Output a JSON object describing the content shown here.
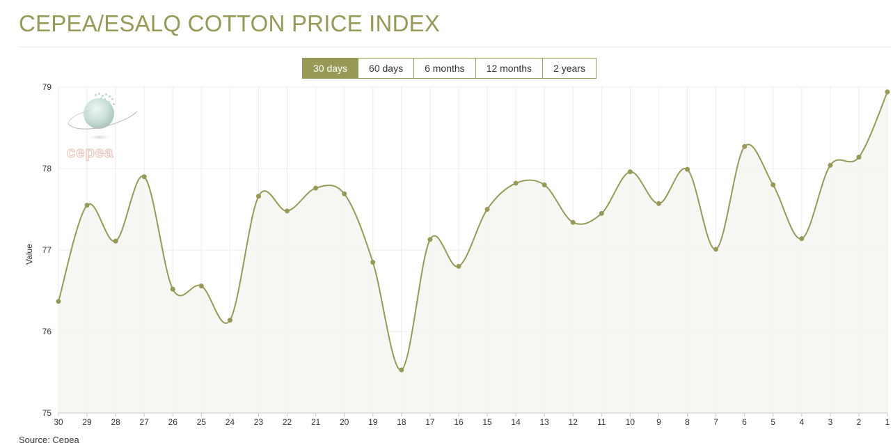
{
  "title": "CEPEA/ESALQ COTTON PRICE INDEX",
  "range_tabs": [
    {
      "label": "30 days",
      "active": true
    },
    {
      "label": "60 days",
      "active": false
    },
    {
      "label": "6 months",
      "active": false
    },
    {
      "label": "12 months",
      "active": false
    },
    {
      "label": "2 years",
      "active": false
    }
  ],
  "source": "Source: Cepea",
  "logo": {
    "text": "cepea"
  },
  "colors": {
    "accent": "#979a57",
    "area_fill": "#f5f5f0",
    "grid": "#ececec"
  },
  "chart_data": {
    "type": "area",
    "xlabel": "",
    "ylabel": "Value",
    "ylim": [
      75,
      79
    ],
    "yticks": [
      75,
      76,
      77,
      78,
      79
    ],
    "grid": true,
    "smooth": true,
    "categories": [
      "30",
      "29",
      "28",
      "27",
      "26",
      "25",
      "24",
      "23",
      "22",
      "21",
      "20",
      "19",
      "18",
      "17",
      "16",
      "15",
      "14",
      "13",
      "12",
      "11",
      "10",
      "9",
      "8",
      "7",
      "6",
      "5",
      "4",
      "3",
      "2",
      "1"
    ],
    "series": [
      {
        "values": [
          76.37,
          77.55,
          77.11,
          77.9,
          76.52,
          76.56,
          76.14,
          77.66,
          77.48,
          77.76,
          77.69,
          76.85,
          75.53,
          77.13,
          76.8,
          77.5,
          77.82,
          77.8,
          77.34,
          77.45,
          77.96,
          77.57,
          77.99,
          77.01,
          78.27,
          77.8,
          77.14,
          78.04,
          78.14,
          78.94
        ]
      }
    ]
  }
}
